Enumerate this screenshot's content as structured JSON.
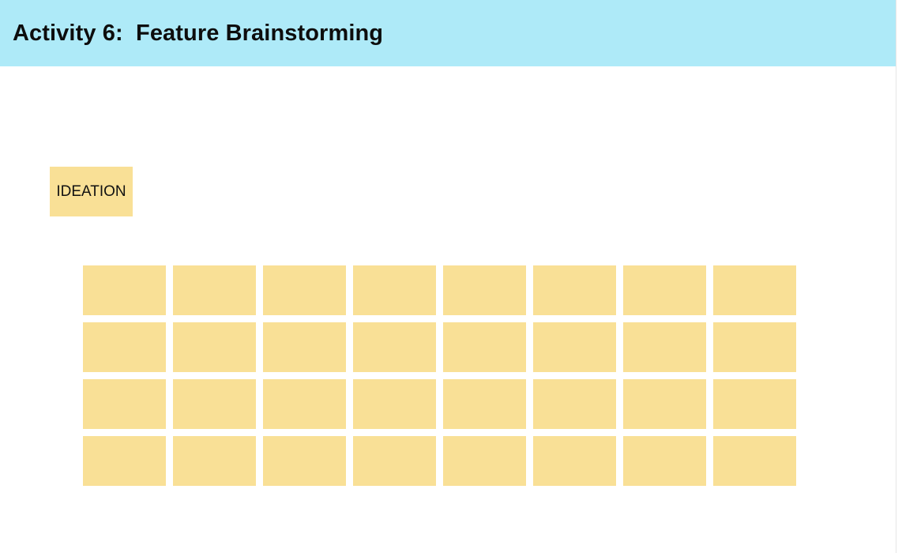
{
  "header": {
    "title": "Activity 6:  Feature Brainstorming",
    "background": "#aeeaf8"
  },
  "ideation_note": {
    "label": "IDEATION",
    "color": "#f9e096"
  },
  "notes_grid": {
    "rows": 4,
    "columns": 8,
    "note_color": "#f9e096"
  }
}
